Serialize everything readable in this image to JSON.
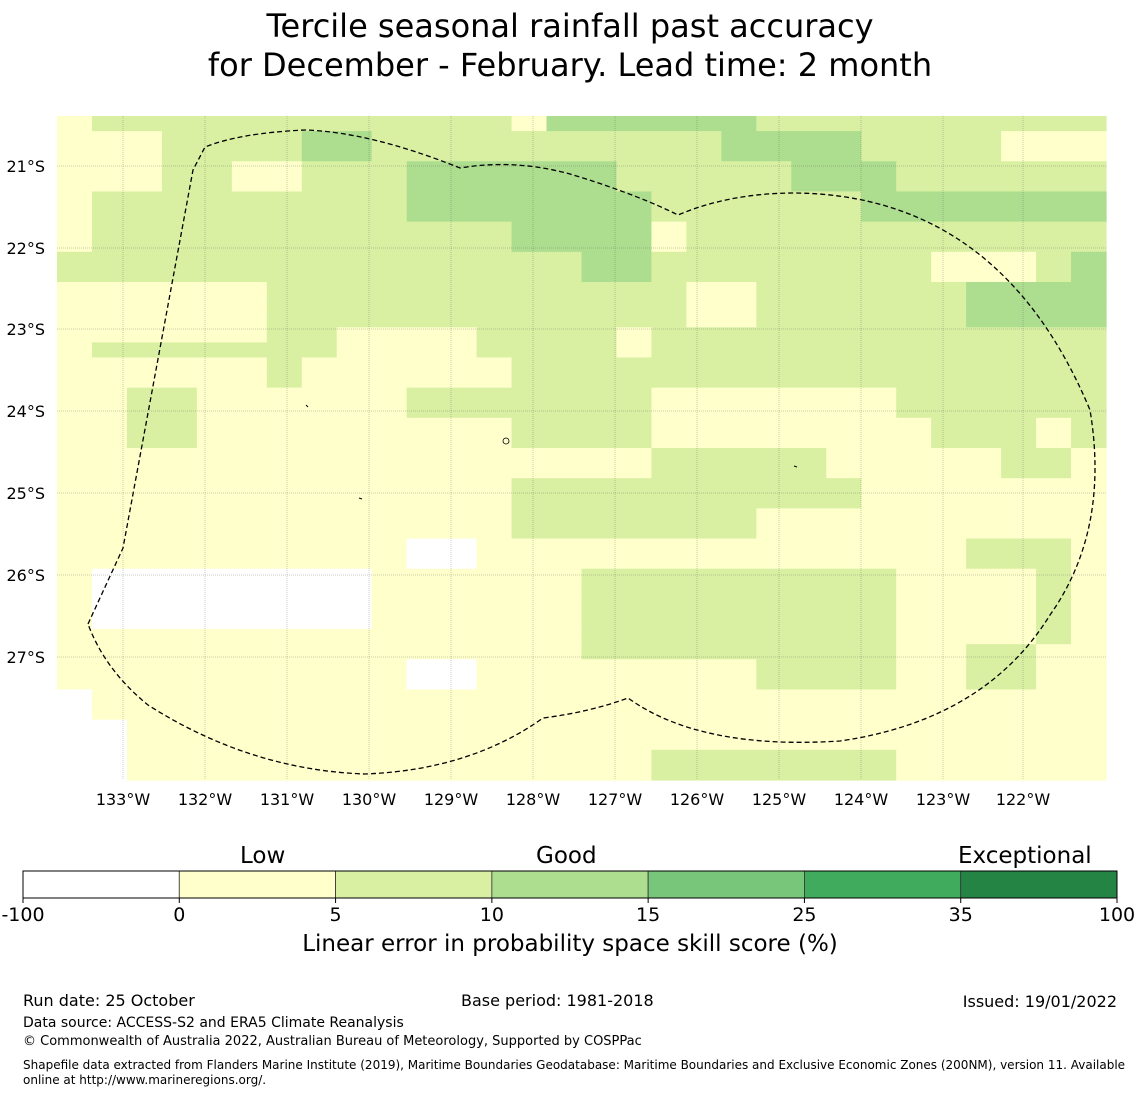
{
  "title": {
    "line1": "Tercile seasonal rainfall past accuracy",
    "line2": "for December - February. Lead time: 2 month"
  },
  "map": {
    "lat_labels": [
      "21°S",
      "22°S",
      "23°S",
      "24°S",
      "25°S",
      "26°S",
      "27°S"
    ],
    "lon_labels": [
      "133°W",
      "132°W",
      "131°W",
      "130°W",
      "129°W",
      "128°W",
      "127°W",
      "126°W",
      "125°W",
      "124°W",
      "123°W",
      "122°W"
    ],
    "category_codes": "0 = no data (white), 1 = 0-5 %, 2 = 5-10 %, 3 = 10-15 % (row 0 is the northern-most strip)",
    "grid": [
      "122222222222213333332222222222",
      "111222233222222222233332222111",
      "111222233222222222233332222111",
      "111221122233333322222333222222",
      "111221122233333322222333222222",
      "122222222233333332222223333333",
      "122222222233333332222223333333",
      "122222222222233331222222222222",
      "122222222222233331222222222222",
      "222222222222222332222222211123",
      "222222222222222332222222211123",
      "111111222222222222112222223333",
      "111111222222222222112222223333",
      "111111222222222222112222223333",
      "111111221111222212222222222222",
      "122222221111222212222222222222",
      "111111211111122222222222222222",
      "111111211111122222222222222222",
      "112211111122222221111111222222",
      "112211111122222221111111222222",
      "112211111111122221111111122212",
      "112211111111122221111111122212",
      "111111111111111112222211111221",
      "111111111111111112222211111221",
      "111111111111122222222221111111",
      "111111111111122222222221111111",
      "111111111111122222221111111111",
      "111111111111122222221111111111",
      "111111111100111111111111112221",
      "111111111100111111111111112221",
      "100000000111111222222222111121",
      "100000000111111222222222111121",
      "100000000111111222222222111121",
      "100000000111111222222222111121",
      "111111111111111222222222111121",
      "111111111111111222222222112211",
      "111111111100111111112222112211",
      "111111111100111111112222112211",
      "011111111111111111111111111111",
      "011111111111111111111111111111",
      "001111111111111111111111111111",
      "001111111111111111111111111111",
      "001111111111111112222222111111",
      "001111111111111112222222111111"
    ],
    "grid_note": "grid rows are 11.4 px strips, 30 columns of 34.2 px each"
  },
  "colorbar": {
    "categories": [
      "Low",
      "Good",
      "Exceptional"
    ],
    "ticks": [
      "-100",
      "0",
      "5",
      "10",
      "15",
      "25",
      "35",
      "100"
    ],
    "colors": [
      "#ffffff",
      "#ffffcc",
      "#d9f0a3",
      "#addd8e",
      "#78c679",
      "#41ab5d",
      "#238443"
    ],
    "axis_label": "Linear error in probability space skill score (%)"
  },
  "footer": {
    "run_date": "Run date: 25 October",
    "base_period": "Base period: 1981-2018",
    "issued": "Issued: 19/01/2022",
    "data_source": "Data source: ACCESS-S2 and ERA5 Climate Reanalysis",
    "copyright": "© Commonwealth of Australia 2022, Australian Bureau of Meteorology, Supported by COSPPac",
    "shapefile_line1": "Shapefile data extracted from Flanders Marine Institute (2019), Maritime Boundaries Geodatabase: Maritime Boundaries and Exclusive Economic Zones (200NM), version 11. Available",
    "shapefile_line2": "online at http://www.marineregions.org/."
  }
}
